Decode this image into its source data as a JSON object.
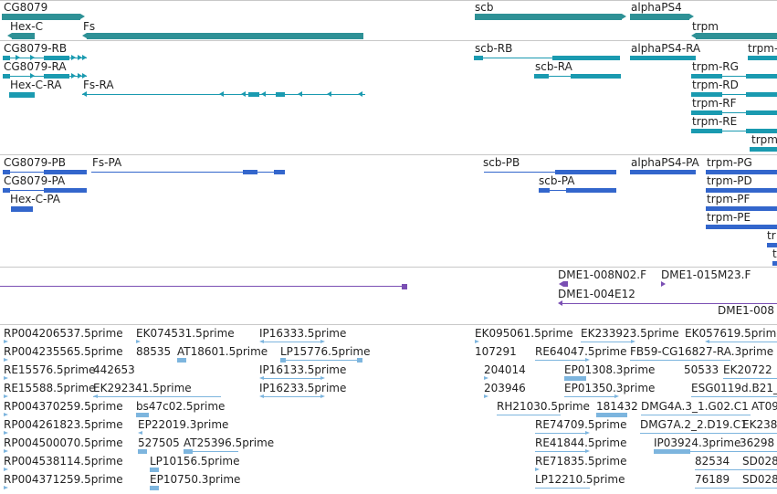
{
  "colors": {
    "gene": "#2e9196",
    "transcript_a": "#1a9ab0",
    "transcript_b": "#3366cc",
    "clone": "#7a4fb3",
    "est": "#7db5de",
    "divider": "#c8c8c8"
  },
  "tracks": {
    "genes": {
      "labels": [
        "CG8079",
        "Hex-C",
        "Fs",
        "scb",
        "alphaPS4",
        "trpm"
      ]
    },
    "transcripts_a": {
      "labels": [
        "CG8079-RB",
        "CG8079-RA",
        "Hex-C-RA",
        "Fs-RA",
        "scb-RB",
        "scb-RA",
        "alphaPS4-RA",
        "trpm-",
        "trpm-RG",
        "trpm-RD",
        "trpm-RF",
        "trpm-RE",
        "trpm"
      ]
    },
    "transcripts_b": {
      "labels": [
        "CG8079-PB",
        "CG8079-PA",
        "Hex-C-PA",
        "Fs-PA",
        "scb-PB",
        "scb-PA",
        "alphaPS4-PA",
        "trpm-PG",
        "trpm-PD",
        "trpm-PF",
        "trpm-PE",
        "tr",
        "t"
      ]
    },
    "clones": {
      "labels": [
        "DME1-008N02.F",
        "DME1-015M23.F",
        "DME1-004E12",
        "DME1-008"
      ]
    },
    "ests": {
      "labels": [
        "RP004206537.5prime",
        "EK074531.5prime",
        "IP16333.5prime",
        "EK095061.5prime",
        "EK233923.5prime",
        "EK057619.5prime",
        "RP004235565.5prime",
        "88535",
        "AT18601.5prime",
        "LP15776.5prime",
        "107291",
        "RE64047.5prime",
        "FB59-CG16827-RA.3prime",
        "RE15576.5prime",
        "442653",
        "IP16133.5prime",
        "204014",
        "EP01308.3prime",
        "50533",
        "EK20722",
        "RE15588.5prime",
        "EK292341.5prime",
        "IP16233.5prime",
        "203946",
        "EP01350.3prime",
        "ESG0119d.B21_",
        "RP004370259.5prime",
        "bs47c02.5prime",
        "RH21030.5prime",
        "181432",
        "DMG4A.3_1.G02.C1",
        "AT09",
        "RP004261823.5prime",
        "EP22019.3prime",
        "RE74709.5prime",
        "DMG7A.2_2.D19.C1",
        "EK238",
        "RP004500070.5prime",
        "527505",
        "AT25396.5prime",
        "RE41844.5prime",
        "IP03924.3prime",
        "36298",
        "RP004538114.5prime",
        "LP10156.5prime",
        "RE71835.5prime",
        "82534",
        "SD028",
        "RP004371259.5prime",
        "EP10750.3prime",
        "LP12210.5prime",
        "76189",
        "SD028"
      ]
    }
  }
}
